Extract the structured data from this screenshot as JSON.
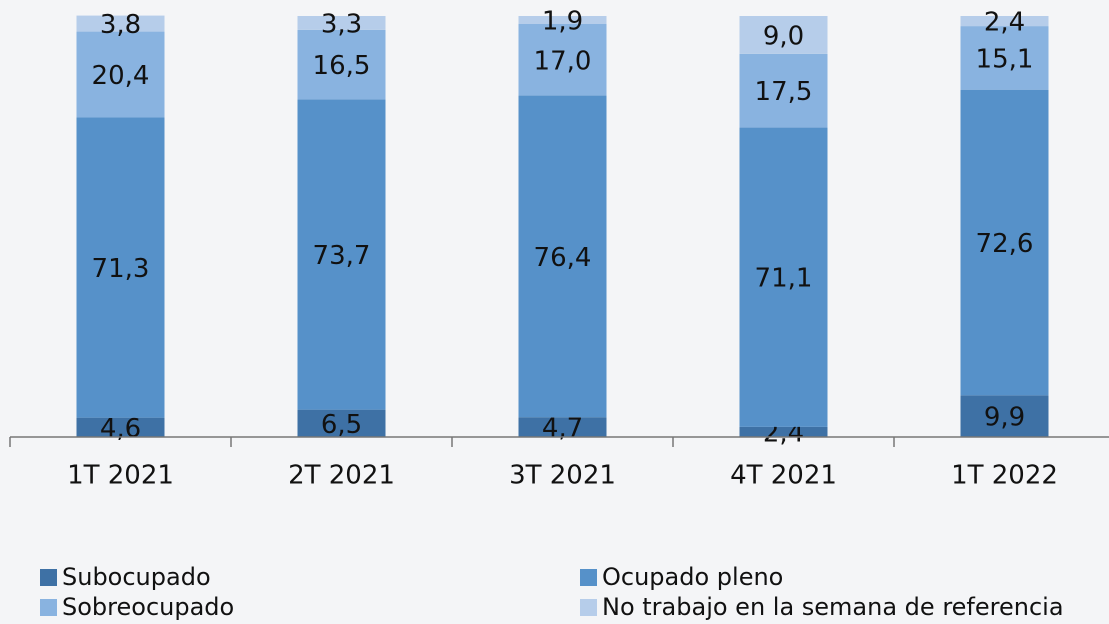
{
  "chart_data": {
    "type": "stacked-bar",
    "categories": [
      "1T 2021",
      "2T 2021",
      "3T 2021",
      "4T 2021",
      "1T 2022"
    ],
    "series": [
      {
        "name": "Subocupado",
        "color": "#3e71a5",
        "values": [
          4.6,
          6.5,
          4.7,
          2.4,
          9.9
        ],
        "value_labels": [
          "4,6",
          "6,5",
          "4,7",
          "2,4",
          "9,9"
        ]
      },
      {
        "name": "Ocupado pleno",
        "color": "#5691c9",
        "values": [
          71.3,
          73.7,
          76.4,
          71.1,
          72.6
        ],
        "value_labels": [
          "71,3",
          "73,7",
          "76,4",
          "71,1",
          "72,6"
        ]
      },
      {
        "name": "Sobreocupado",
        "color": "#89b3e0",
        "values": [
          20.4,
          16.5,
          17.0,
          17.5,
          15.1
        ],
        "value_labels": [
          "20,4",
          "16,5",
          "17,0",
          "17,5",
          "15,1"
        ]
      },
      {
        "name": "No trabajo en la semana de referencia",
        "color": "#b6cdea",
        "values": [
          3.8,
          3.3,
          1.9,
          9.0,
          2.4
        ],
        "value_labels": [
          "3,8",
          "3,3",
          "1,9",
          "9,0",
          "2,4"
        ]
      }
    ],
    "ylim": [
      0,
      100
    ]
  }
}
